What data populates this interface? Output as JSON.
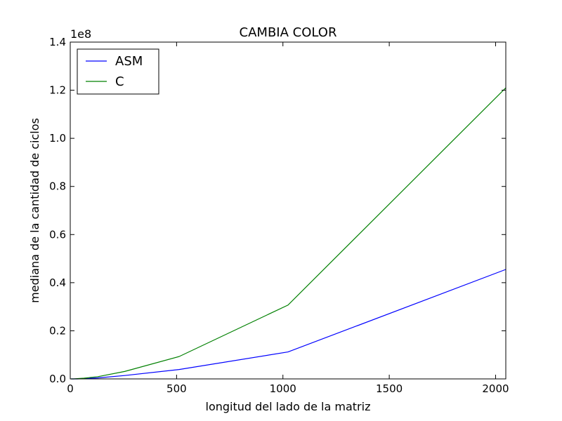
{
  "chart_data": {
    "type": "line",
    "title": "CAMBIA COLOR",
    "xlabel": "longitud del lado de la matriz",
    "ylabel": "mediana de la cantidad de ciclos",
    "y_offset_label": "1e8",
    "xlim": [
      0,
      2048
    ],
    "ylim": [
      0,
      1.4
    ],
    "x_ticks": [
      0,
      500,
      1000,
      1500,
      2000
    ],
    "x_tick_labels": [
      "0",
      "500",
      "1000",
      "1500",
      "2000"
    ],
    "y_ticks": [
      0.0,
      0.2,
      0.4,
      0.6,
      0.8,
      1.0,
      1.2,
      1.4
    ],
    "y_tick_labels": [
      "0.0",
      "0.2",
      "0.4",
      "0.6",
      "0.8",
      "1.0",
      "1.2",
      "1.4"
    ],
    "grid": false,
    "legend_position": "top-left",
    "x": [
      4,
      16,
      32,
      64,
      128,
      256,
      512,
      1024,
      2048
    ],
    "series": [
      {
        "name": "ASM",
        "color": "#0000ff",
        "values": [
          0.0,
          0.0,
          0.0,
          0.001,
          0.004,
          0.014,
          0.039,
          0.112,
          0.455
        ]
      },
      {
        "name": "C",
        "color": "#008000",
        "values": [
          0.0,
          0.0,
          0.001,
          0.003,
          0.009,
          0.031,
          0.093,
          0.307,
          1.21
        ]
      }
    ]
  }
}
